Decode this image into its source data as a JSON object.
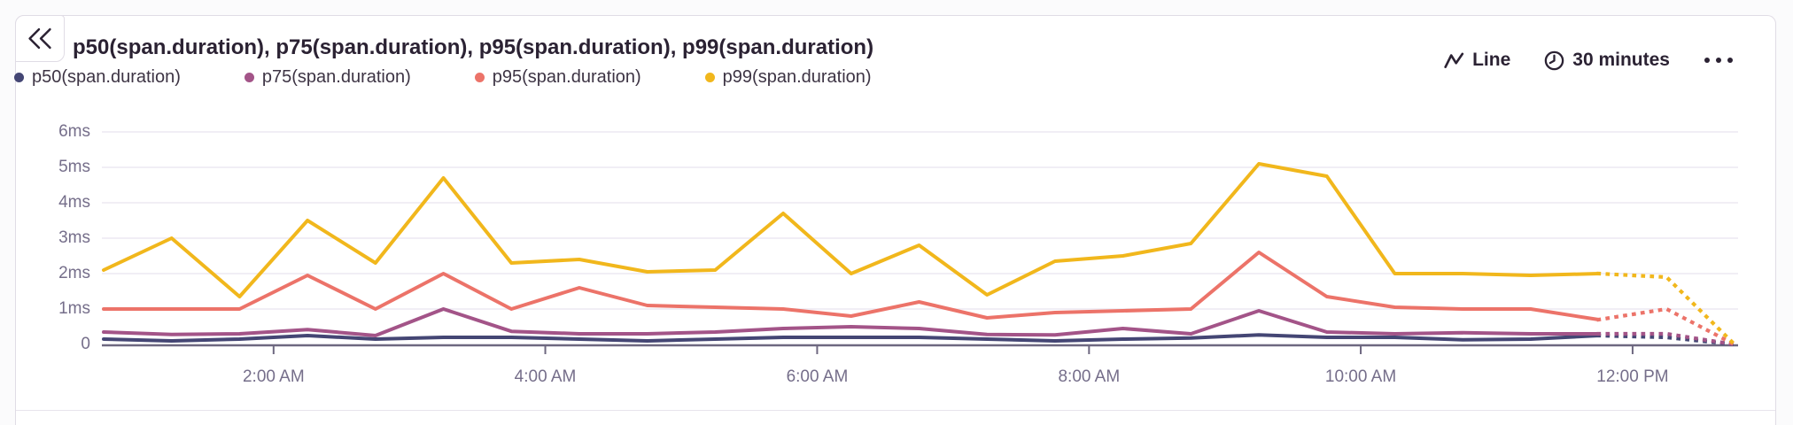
{
  "header": {
    "chart_type_label": "Line",
    "interval_label": "30 minutes",
    "icons": {
      "collapse": "double-chevron-left",
      "chart_type": "line-zigzag",
      "interval": "clock",
      "more": "horizontal-ellipsis"
    }
  },
  "colors": {
    "title_text": "#2b2233",
    "axis_text": "#756e8a",
    "legend_text": "#3d3444",
    "axis_line": "#6e6880",
    "gridline": "#f1eef5",
    "card_border": "#e0dce5"
  },
  "chart_data": {
    "type": "line",
    "title": "p50(span.duration), p75(span.duration), p95(span.duration), p99(span.duration)",
    "unit": "ms",
    "grid": true,
    "legend_position": "top-left",
    "x_tick_labels": [
      "2:00 AM",
      "4:00 AM",
      "6:00 AM",
      "8:00 AM",
      "10:00 AM",
      "12:00 PM"
    ],
    "x_tick_positions": [
      0.1042,
      0.2708,
      0.4375,
      0.6042,
      0.7708,
      0.9375
    ],
    "y_ticks": [
      {
        "value": 0,
        "label": "0"
      },
      {
        "value": 1,
        "label": "1ms"
      },
      {
        "value": 2,
        "label": "2ms"
      },
      {
        "value": 3,
        "label": "3ms"
      },
      {
        "value": 4,
        "label": "4ms"
      },
      {
        "value": 5,
        "label": "5ms"
      },
      {
        "value": 6,
        "label": "6ms"
      }
    ],
    "ylim": [
      0,
      6.85
    ],
    "solid_until_index": 22,
    "series": [
      {
        "name": "p50(span.duration)",
        "color": "#444674",
        "values": [
          0.15,
          0.1,
          0.15,
          0.25,
          0.15,
          0.2,
          0.2,
          0.15,
          0.1,
          0.15,
          0.2,
          0.2,
          0.2,
          0.15,
          0.1,
          0.15,
          0.18,
          0.27,
          0.2,
          0.2,
          0.13,
          0.15,
          0.25,
          0.2,
          0
        ]
      },
      {
        "name": "p75(span.duration)",
        "color": "#a35488",
        "values": [
          0.35,
          0.28,
          0.3,
          0.42,
          0.25,
          1.0,
          0.37,
          0.3,
          0.3,
          0.35,
          0.45,
          0.5,
          0.45,
          0.28,
          0.27,
          0.45,
          0.3,
          0.95,
          0.35,
          0.3,
          0.33,
          0.3,
          0.3,
          0.3,
          0
        ]
      },
      {
        "name": "p95(span.duration)",
        "color": "#ec7369",
        "values": [
          1.0,
          1.0,
          1.0,
          1.95,
          1.0,
          2.0,
          1.0,
          1.6,
          1.1,
          1.05,
          1.0,
          0.8,
          1.2,
          0.75,
          0.9,
          0.95,
          1.0,
          2.6,
          1.35,
          1.05,
          1.0,
          1.0,
          0.7,
          1.0,
          0
        ]
      },
      {
        "name": "p99(span.duration)",
        "color": "#f1b71c",
        "values": [
          2.1,
          3.0,
          1.35,
          3.5,
          2.3,
          4.7,
          2.3,
          2.4,
          2.05,
          2.1,
          3.7,
          2.0,
          2.8,
          1.4,
          2.35,
          2.5,
          2.85,
          5.1,
          4.75,
          2.0,
          2.0,
          1.95,
          2.0,
          1.9,
          0
        ]
      }
    ]
  }
}
